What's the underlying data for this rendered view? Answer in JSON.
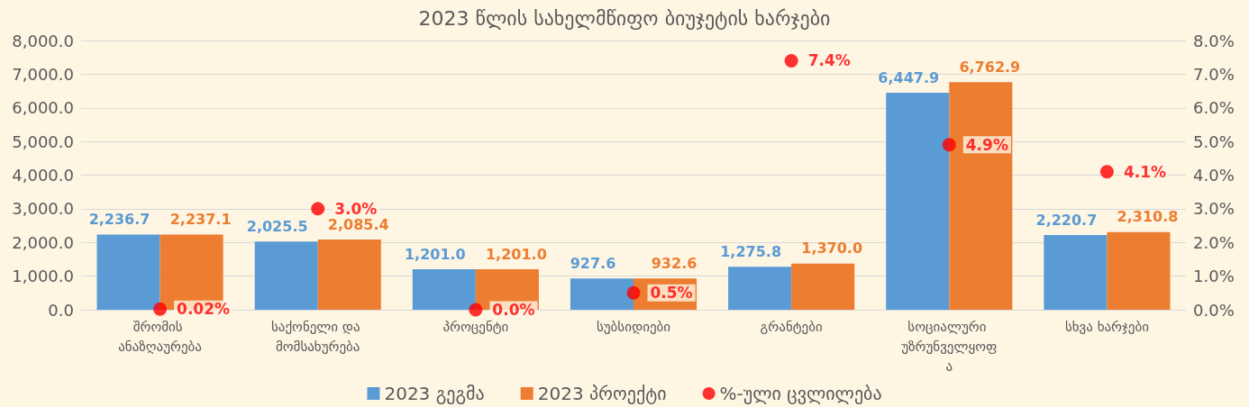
{
  "chart_data": {
    "type": "bar",
    "title": "2023 წლის სახელმწიფო ბიუჯეტის ხარჯები",
    "categories": [
      "შრომის ანაზღაურება",
      "საქონელი და მომსახურება",
      "პროცენტი",
      "სუბსიდიები",
      "გრანტები",
      "სოციალური უზრუნველყოფა",
      "სხვა ხარჯები"
    ],
    "series": [
      {
        "name": "2023 გეგმა",
        "color": "#5b9bd5",
        "values": [
          2236.7,
          2025.5,
          1201.0,
          927.6,
          1275.8,
          6447.9,
          2220.7
        ],
        "value_labels": [
          "2,236.7",
          "2,025.5",
          "1,201.0",
          "927.6",
          "1,275.8",
          "6,447.9",
          "2,220.7"
        ]
      },
      {
        "name": "2023 პროექტი",
        "color": "#ed7d31",
        "values": [
          2237.1,
          2085.4,
          1201.0,
          932.6,
          1370.0,
          6762.9,
          2310.8
        ],
        "value_labels": [
          "2,237.1",
          "2,085.4",
          "1,201.0",
          "932.6",
          "1,370.0",
          "6,762.9",
          "2,310.8"
        ]
      },
      {
        "name": "%-ული ცვლილება",
        "type": "scatter",
        "axis": "y2",
        "color": "#ff0000",
        "values": [
          0.02,
          3.0,
          0.0,
          0.5,
          7.4,
          4.9,
          4.1
        ],
        "value_labels": [
          "0.02%",
          "3.0%",
          "0.0%",
          "0.5%",
          "7.4%",
          "4.9%",
          "4.1%"
        ]
      }
    ],
    "ylim": [
      0,
      8000
    ],
    "yticks": [
      {
        "value": 0,
        "label": "0.0"
      },
      {
        "value": 1000,
        "label": "1,000.0"
      },
      {
        "value": 2000,
        "label": "2,000.0"
      },
      {
        "value": 3000,
        "label": "3,000.0"
      },
      {
        "value": 4000,
        "label": "4,000.0"
      },
      {
        "value": 5000,
        "label": "5,000.0"
      },
      {
        "value": 6000,
        "label": "6,000.0"
      },
      {
        "value": 7000,
        "label": "7,000.0"
      },
      {
        "value": 8000,
        "label": "8,000.0"
      }
    ],
    "y2lim": [
      0,
      8
    ],
    "y2ticks": [
      {
        "value": 0,
        "label": "0.0%"
      },
      {
        "value": 1,
        "label": "1.0%"
      },
      {
        "value": 2,
        "label": "2.0%"
      },
      {
        "value": 3,
        "label": "3.0%"
      },
      {
        "value": 4,
        "label": "4.0%"
      },
      {
        "value": 5,
        "label": "5.0%"
      },
      {
        "value": 6,
        "label": "6.0%"
      },
      {
        "value": 7,
        "label": "7.0%"
      },
      {
        "value": 8,
        "label": "8.0%"
      }
    ],
    "grid": "y",
    "legend": "bottom",
    "marker": "circle"
  }
}
